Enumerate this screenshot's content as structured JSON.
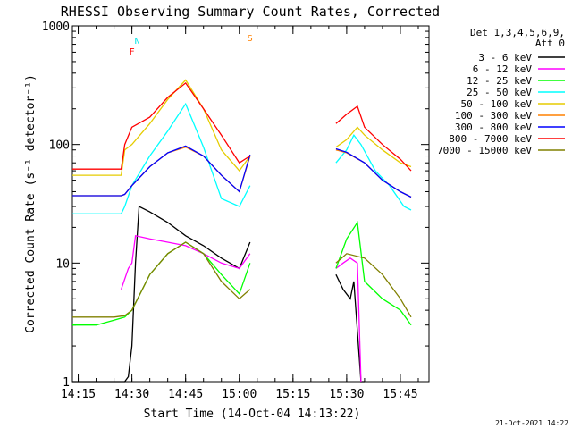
{
  "chart_data": {
    "type": "line",
    "title": "RHESSI Observing Summary Count Rates, Corrected",
    "xlabel": "Start Time (14-Oct-04 14:13:22)",
    "ylabel": "Corrected Count Rate (s⁻¹ detector⁻¹)",
    "y_scale": "log",
    "ylim": [
      1,
      1000
    ],
    "xlim": [
      "14:13:22",
      "15:53:00"
    ],
    "x_ticks": [
      "14:15",
      "14:30",
      "14:45",
      "15:00",
      "15:15",
      "15:30",
      "15:45"
    ],
    "y_ticks": [
      "1",
      "10",
      "100",
      "1000"
    ],
    "legend_header": [
      "Det 1,3,4,5,6,9,",
      "Att 0"
    ],
    "legend_position": "top-right",
    "footer_date": "21-Oct-2021 14:22",
    "markers": [
      {
        "label": "N",
        "color": "#00e5e5",
        "x": "14:31:30"
      },
      {
        "label": "F",
        "color": "#ff0000",
        "x": "14:30:00"
      },
      {
        "label": "S",
        "color": "#ff8000",
        "x": "15:03:00"
      }
    ],
    "series": [
      {
        "name": "3 - 6 keV",
        "color": "#000000",
        "x": [
          "14:13:22",
          "14:27",
          "14:28",
          "14:29",
          "14:30",
          "14:31",
          "14:32",
          "14:35",
          "14:40",
          "14:45",
          "14:50",
          "14:55",
          "15:00",
          "15:03",
          "15:03",
          "15:25",
          "15:27",
          "15:29",
          "15:31",
          "15:32",
          "15:34",
          "15:35"
        ],
        "y": [
          1,
          1,
          1,
          1.1,
          2,
          10,
          30,
          27,
          22,
          17,
          14,
          11,
          9,
          15,
          null,
          null,
          8,
          6,
          5,
          7,
          1,
          1
        ]
      },
      {
        "name": "6 - 12 keV",
        "color": "#ff00ff",
        "x": [
          "14:27",
          "14:29",
          "14:30",
          "14:31",
          "14:35",
          "14:40",
          "14:45",
          "14:50",
          "14:55",
          "15:00",
          "15:03",
          "15:03",
          "15:25",
          "15:27",
          "15:29",
          "15:31",
          "15:33",
          "15:34"
        ],
        "y": [
          6,
          9,
          10,
          17,
          16,
          15,
          14,
          12,
          10,
          9,
          12,
          null,
          null,
          9,
          10,
          11,
          10,
          1
        ]
      },
      {
        "name": "12 - 25 keV",
        "color": "#00ff00",
        "x": [
          "14:13:22",
          "14:20",
          "14:25",
          "14:28",
          "14:30",
          "14:35",
          "14:40",
          "14:45",
          "14:50",
          "14:55",
          "15:00",
          "15:03",
          "15:03",
          "15:25",
          "15:27",
          "15:30",
          "15:33",
          "15:35",
          "15:40",
          "15:45",
          "15:48"
        ],
        "y": [
          3,
          3,
          3.3,
          3.5,
          4,
          8,
          12,
          15,
          12,
          8,
          5.5,
          10,
          null,
          null,
          9,
          16,
          22,
          7,
          5,
          4,
          3
        ]
      },
      {
        "name": "25 - 50 keV",
        "color": "#00ffff",
        "x": [
          "14:13:22",
          "14:27",
          "14:28",
          "14:30",
          "14:35",
          "14:40",
          "14:45",
          "14:50",
          "14:55",
          "15:00",
          "15:03",
          "15:03",
          "15:25",
          "15:27",
          "15:30",
          "15:32",
          "15:34",
          "15:38",
          "15:42",
          "15:46",
          "15:48"
        ],
        "y": [
          26,
          26,
          30,
          45,
          80,
          130,
          220,
          95,
          35,
          30,
          45,
          null,
          null,
          70,
          90,
          120,
          100,
          60,
          45,
          30,
          28
        ]
      },
      {
        "name": "50 - 100 keV",
        "color": "#e5cc00",
        "x": [
          "14:13:22",
          "14:27",
          "14:28",
          "14:30",
          "14:35",
          "14:40",
          "14:45",
          "14:50",
          "14:55",
          "15:00",
          "15:03",
          "15:03",
          "15:25",
          "15:27",
          "15:30",
          "15:33",
          "15:35",
          "15:40",
          "15:45",
          "15:48"
        ],
        "y": [
          55,
          55,
          90,
          100,
          150,
          240,
          350,
          200,
          90,
          60,
          80,
          null,
          null,
          95,
          110,
          140,
          120,
          90,
          70,
          65
        ]
      },
      {
        "name": "100 - 300 keV",
        "color": "#ff8000",
        "x": [
          "14:13:22",
          "14:27",
          "14:28",
          "14:30",
          "14:35",
          "14:40",
          "14:45",
          "14:50",
          "14:55",
          "15:00",
          "15:03",
          "15:03",
          "15:25",
          "15:27",
          "15:30",
          "15:35",
          "15:40",
          "15:45",
          "15:48"
        ],
        "y": [
          37,
          37,
          38,
          45,
          65,
          85,
          95,
          80,
          55,
          40,
          80,
          null,
          null,
          90,
          85,
          70,
          50,
          40,
          36
        ]
      },
      {
        "name": "300 - 800 keV",
        "color": "#0000ff",
        "x": [
          "14:13:22",
          "14:27",
          "14:28",
          "14:30",
          "14:35",
          "14:40",
          "14:45",
          "14:50",
          "14:55",
          "15:00",
          "15:03",
          "15:03",
          "15:25",
          "15:27",
          "15:30",
          "15:35",
          "15:40",
          "15:45",
          "15:48"
        ],
        "y": [
          37,
          37,
          38,
          45,
          65,
          85,
          97,
          80,
          55,
          40,
          82,
          null,
          null,
          92,
          86,
          70,
          50,
          40,
          36
        ]
      },
      {
        "name": "800 - 7000 keV",
        "color": "#ff0000",
        "x": [
          "14:13:22",
          "14:27",
          "14:28",
          "14:30",
          "14:35",
          "14:40",
          "14:45",
          "14:50",
          "14:55",
          "15:00",
          "15:03",
          "15:03",
          "15:25",
          "15:27",
          "15:30",
          "15:33",
          "15:35",
          "15:40",
          "15:45",
          "15:48"
        ],
        "y": [
          62,
          62,
          100,
          140,
          170,
          250,
          330,
          200,
          120,
          70,
          80,
          null,
          null,
          150,
          180,
          210,
          140,
          100,
          75,
          60
        ]
      },
      {
        "name": "7000 - 15000 keV",
        "color": "#808000",
        "x": [
          "14:13:22",
          "14:25",
          "14:28",
          "14:30",
          "14:35",
          "14:40",
          "14:45",
          "14:50",
          "14:55",
          "15:00",
          "15:03",
          "15:03",
          "15:25",
          "15:27",
          "15:30",
          "15:35",
          "15:40",
          "15:45",
          "15:48"
        ],
        "y": [
          3.5,
          3.5,
          3.6,
          4,
          8,
          12,
          15,
          12,
          7,
          5,
          6,
          null,
          null,
          10,
          12,
          11,
          8,
          5,
          3.5
        ]
      }
    ]
  }
}
